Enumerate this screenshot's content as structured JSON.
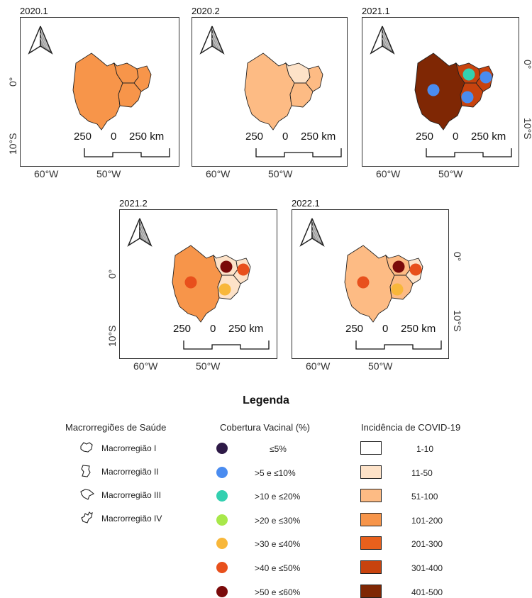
{
  "colors": {
    "inc_1_10": "#ffffff",
    "inc_11_50": "#fde2c8",
    "inc_51_100": "#fdbb84",
    "inc_101_200": "#f7954a",
    "inc_201_300": "#e8601c",
    "inc_301_400": "#c8430e",
    "inc_401_500": "#7f2704",
    "cov_le5": "#2e1a47",
    "cov_5_10": "#4a8cf0",
    "cov_10_20": "#33d0b0",
    "cov_20_30": "#a8e84a",
    "cov_30_40": "#f8b73a",
    "cov_40_50": "#e8501c",
    "cov_50_60": "#7a0a0a"
  },
  "panels": [
    {
      "title": "2020.1",
      "lon": [
        "60°W",
        "50°W"
      ],
      "lat": [
        "0°",
        "10°S"
      ],
      "lat_side": "left",
      "scalebar": [
        "250",
        "0",
        "250 km"
      ],
      "regions": {
        "r1": "inc_101_200",
        "r2": "inc_101_200",
        "r3": "inc_101_200",
        "r4": "inc_101_200"
      },
      "dots": {}
    },
    {
      "title": "2020.2",
      "lon": [
        "60°W",
        "50°W"
      ],
      "lat": [],
      "lat_side": "none",
      "scalebar": [
        "250",
        "0",
        "250 km"
      ],
      "regions": {
        "r1": "inc_51_100",
        "r2": "inc_11_50",
        "r3": "inc_51_100",
        "r4": "inc_51_100"
      },
      "dots": {}
    },
    {
      "title": "2021.1",
      "lon": [
        "60°W",
        "50°W"
      ],
      "lat": [
        "0°",
        "10°S"
      ],
      "lat_side": "right",
      "scalebar": [
        "250",
        "0",
        "250 km"
      ],
      "regions": {
        "r1": "inc_401_500",
        "r2": "inc_301_400",
        "r3": "inc_301_400",
        "r4": "inc_301_400"
      },
      "dots": {
        "r1": "cov_5_10",
        "r2": "cov_10_20",
        "r3": "cov_5_10",
        "r4": "cov_5_10"
      }
    },
    {
      "title": "2021.2",
      "lon": [
        "60°W",
        "50°W"
      ],
      "lat": [
        "0°",
        "10°S"
      ],
      "lat_side": "left",
      "scalebar": [
        "250",
        "0",
        "250 km"
      ],
      "regions": {
        "r1": "inc_101_200",
        "r2": "inc_11_50",
        "r3": "inc_11_50",
        "r4": "inc_11_50"
      },
      "dots": {
        "r1": "cov_40_50",
        "r2": "cov_50_60",
        "r3": "cov_40_50",
        "r4": "cov_30_40"
      }
    },
    {
      "title": "2022.1",
      "lon": [
        "60°W",
        "50°W"
      ],
      "lat": [
        "0°",
        "10°S"
      ],
      "lat_side": "right",
      "scalebar": [
        "250",
        "0",
        "250 km"
      ],
      "regions": {
        "r1": "inc_51_100",
        "r2": "inc_51_100",
        "r3": "inc_11_50",
        "r4": "inc_51_100"
      },
      "dots": {
        "r1": "cov_40_50",
        "r2": "cov_50_60",
        "r3": "cov_40_50",
        "r4": "cov_30_40"
      }
    }
  ],
  "legend": {
    "title": "Legenda",
    "macro_title": "Macrorregiões de Saúde",
    "macro_items": [
      "Macrorregião I",
      "Macrorregião II",
      "Macrorregião III",
      "Macrorregião IV"
    ],
    "coverage_title": "Cobertura Vacinal (%)",
    "coverage_items": [
      {
        "label": "≤5%",
        "color": "cov_le5"
      },
      {
        "label": ">5 e ≤10%",
        "color": "cov_5_10"
      },
      {
        "label": ">10 e ≤20%",
        "color": "cov_10_20"
      },
      {
        "label": ">20 e ≤30%",
        "color": "cov_20_30"
      },
      {
        "label": ">30 e ≤40%",
        "color": "cov_30_40"
      },
      {
        "label": ">40 e ≤50%",
        "color": "cov_40_50"
      },
      {
        "label": ">50 e ≤60%",
        "color": "cov_50_60"
      }
    ],
    "incidence_title": "Incidência de COVID-19",
    "incidence_items": [
      {
        "label": "1-10",
        "color": "inc_1_10"
      },
      {
        "label": "11-50",
        "color": "inc_11_50"
      },
      {
        "label": "51-100",
        "color": "inc_51_100"
      },
      {
        "label": "101-200",
        "color": "inc_101_200"
      },
      {
        "label": "201-300",
        "color": "inc_201_300"
      },
      {
        "label": "301-400",
        "color": "inc_301_400"
      },
      {
        "label": "401-500",
        "color": "inc_401_500"
      }
    ]
  }
}
